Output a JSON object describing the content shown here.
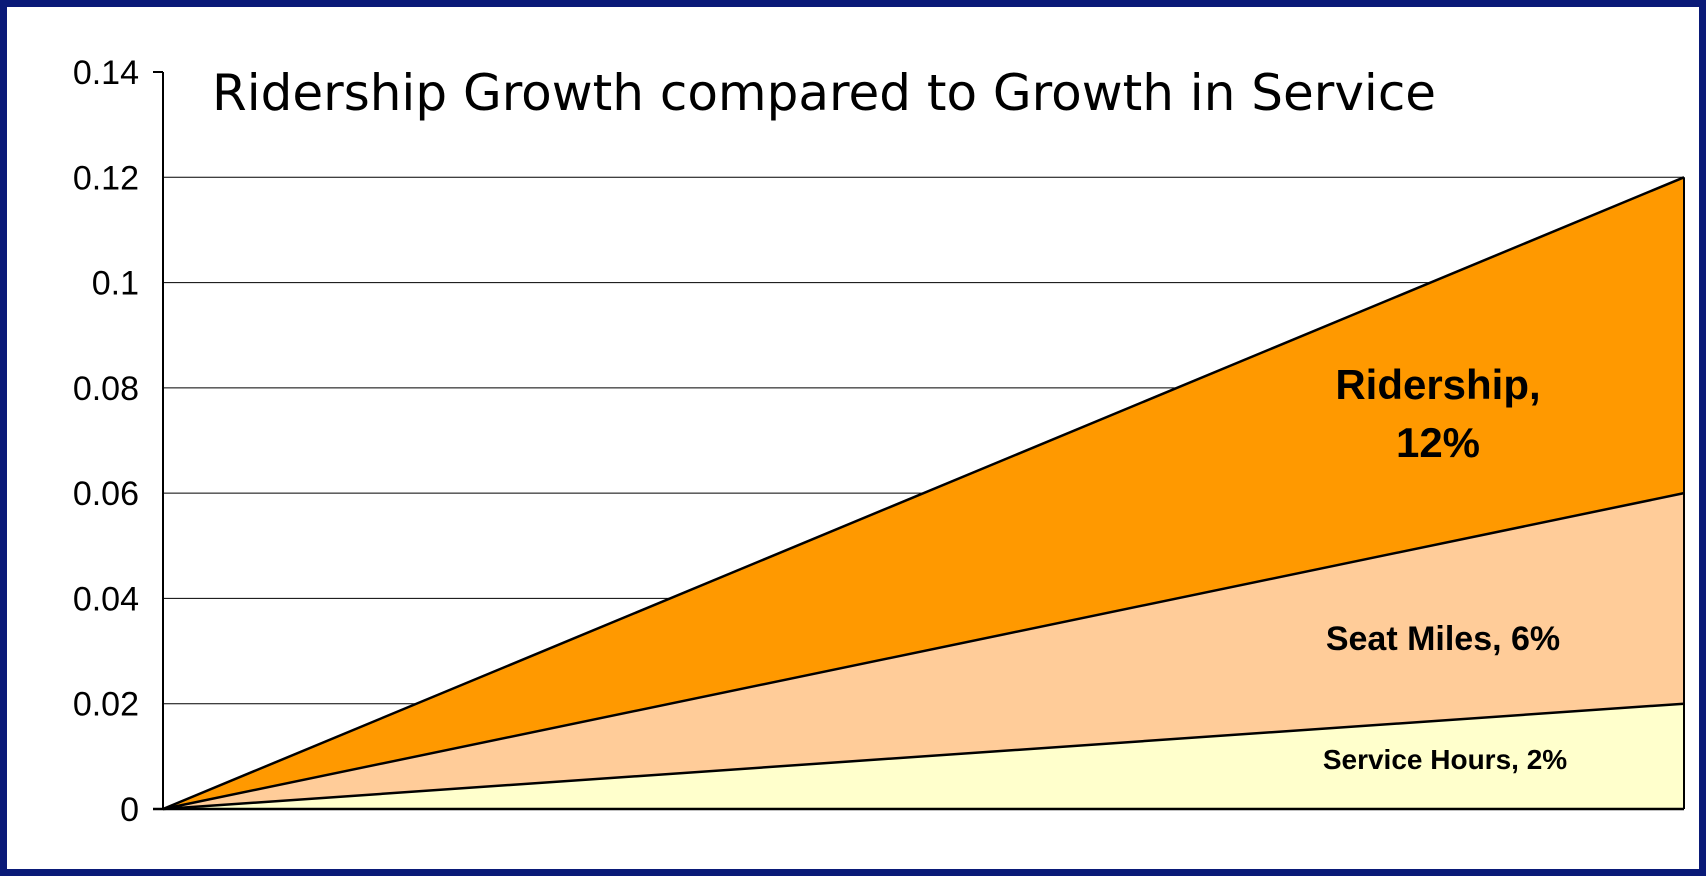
{
  "chart_data": {
    "type": "area",
    "title": "Ridership Growth compared to Growth in Service",
    "xlabel": "",
    "ylabel": "",
    "ylim": [
      0,
      0.14
    ],
    "yticks": [
      "0",
      "0.02",
      "0.04",
      "0.06",
      "0.08",
      "0.1",
      "0.12",
      "0.14"
    ],
    "grid": true,
    "x": [
      0,
      1
    ],
    "series": [
      {
        "name": "Ridership",
        "values": [
          0,
          0.12
        ],
        "color": "#ff9900",
        "label_lines": [
          "Ridership,",
          "12%"
        ]
      },
      {
        "name": "Seat Miles",
        "values": [
          0,
          0.06
        ],
        "color": "#ffcc99",
        "label_lines": [
          "Seat Miles, 6%"
        ]
      },
      {
        "name": "Service Hours",
        "values": [
          0,
          0.02
        ],
        "color": "#ffffcc",
        "label_lines": [
          "Service Hours, 2%"
        ]
      }
    ]
  },
  "colors": {
    "border": "#0a1a78",
    "background": "#ffffff",
    "gridline": "#000000"
  }
}
